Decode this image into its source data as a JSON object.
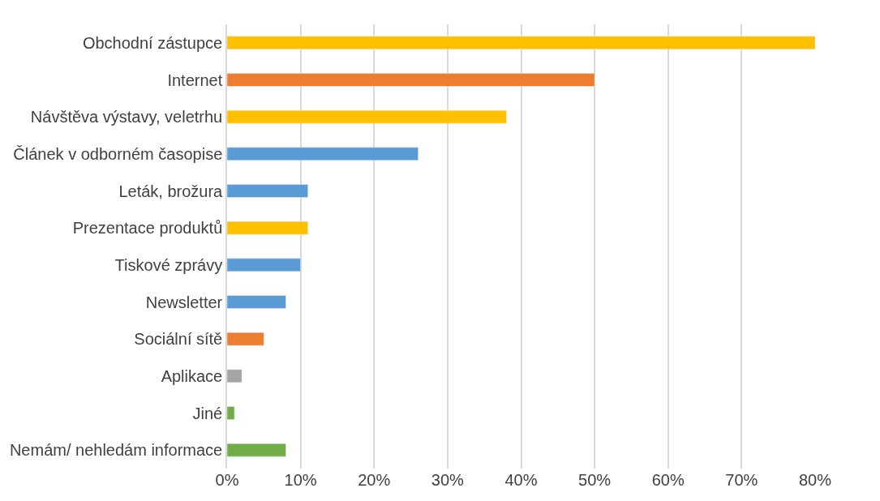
{
  "chart_data": {
    "type": "bar",
    "orientation": "horizontal",
    "categories": [
      "Obchodní zástupce",
      "Internet",
      "Návštěva výstavy, veletrhu",
      "Článek v odborném časopise",
      "Leták, brožura",
      "Prezentace produktů",
      "Tiskové zprávy",
      "Newsletter",
      "Sociální sítě",
      "Aplikace",
      "Jiné",
      "Nemám/ nehledám informace"
    ],
    "values": [
      80,
      50,
      38,
      26,
      11,
      11,
      10,
      8,
      5,
      2,
      1,
      8
    ],
    "colors": [
      "#ffc000",
      "#ed7d31",
      "#ffc000",
      "#5b9bd5",
      "#5b9bd5",
      "#ffc000",
      "#5b9bd5",
      "#5b9bd5",
      "#ed7d31",
      "#a5a5a5",
      "#70ad47",
      "#70ad47"
    ],
    "xlim": [
      0,
      80
    ],
    "xticks": [
      {
        "value": 0,
        "label": "0%"
      },
      {
        "value": 10,
        "label": "10%"
      },
      {
        "value": 20,
        "label": "20%"
      },
      {
        "value": 30,
        "label": "30%"
      },
      {
        "value": 40,
        "label": "40%"
      },
      {
        "value": 50,
        "label": "50%"
      },
      {
        "value": 60,
        "label": "60%"
      },
      {
        "value": 70,
        "label": "70%"
      },
      {
        "value": 80,
        "label": "80%"
      }
    ],
    "grid": "x",
    "legend": false
  }
}
